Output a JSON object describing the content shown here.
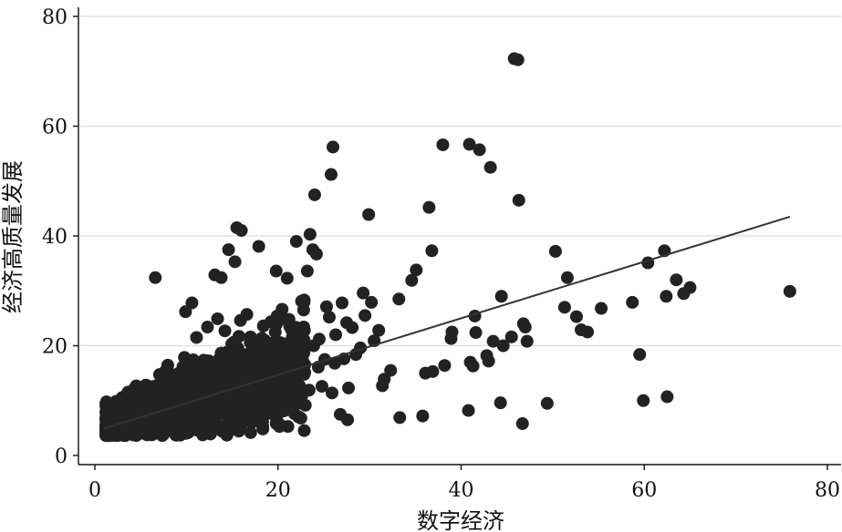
{
  "chart_data": {
    "type": "scatter",
    "title": "",
    "xlabel": "数字经济",
    "ylabel": "经济高质量发展",
    "xlim": [
      0,
      80
    ],
    "ylim": [
      0,
      80
    ],
    "x_ticks": [
      0,
      20,
      40,
      60,
      80
    ],
    "y_ticks": [
      0,
      20,
      40,
      60,
      80
    ],
    "x_tick_labels": [
      "0",
      "20",
      "40",
      "60",
      "80"
    ],
    "y_tick_labels": [
      "0",
      "20",
      "40",
      "60",
      "80"
    ],
    "grid": "horizontal",
    "legend": "none",
    "colors": {
      "points": "#222222",
      "fit_line": "#333333",
      "grid": "#dcdcdc"
    },
    "series": [
      {
        "points": [
          [
            45.8,
            72.3
          ],
          [
            46.2,
            72.1
          ],
          [
            26.0,
            56.2
          ],
          [
            38.0,
            56.6
          ],
          [
            40.9,
            56.7
          ],
          [
            42.0,
            55.7
          ],
          [
            25.8,
            51.2
          ],
          [
            43.2,
            52.5
          ],
          [
            24.0,
            47.5
          ],
          [
            46.3,
            46.5
          ],
          [
            36.5,
            45.2
          ],
          [
            29.9,
            43.9
          ],
          [
            15.5,
            41.5
          ],
          [
            16.0,
            41.0
          ],
          [
            22.0,
            39.0
          ],
          [
            23.5,
            40.3
          ],
          [
            17.9,
            38.1
          ],
          [
            14.6,
            37.5
          ],
          [
            36.8,
            37.3
          ],
          [
            23.8,
            37.5
          ],
          [
            24.2,
            36.7
          ],
          [
            50.3,
            37.2
          ],
          [
            62.2,
            37.3
          ],
          [
            60.4,
            35.1
          ],
          [
            15.3,
            35.3
          ],
          [
            19.8,
            33.6
          ],
          [
            23.2,
            33.6
          ],
          [
            21.0,
            32.3
          ],
          [
            13.1,
            32.9
          ],
          [
            13.8,
            32.4
          ],
          [
            6.6,
            32.4
          ],
          [
            51.6,
            32.4
          ],
          [
            63.5,
            32.0
          ],
          [
            35.1,
            33.8
          ],
          [
            34.6,
            31.9
          ],
          [
            65.0,
            30.6
          ],
          [
            64.3,
            29.5
          ],
          [
            75.9,
            29.9
          ],
          [
            62.4,
            29.0
          ],
          [
            44.4,
            29.0
          ],
          [
            33.2,
            28.5
          ],
          [
            29.3,
            29.6
          ],
          [
            58.7,
            27.9
          ],
          [
            51.3,
            27.0
          ],
          [
            55.3,
            26.8
          ],
          [
            52.6,
            25.3
          ],
          [
            41.5,
            25.4
          ],
          [
            10.6,
            27.8
          ],
          [
            9.9,
            26.2
          ],
          [
            53.1,
            22.9
          ],
          [
            53.8,
            22.5
          ],
          [
            46.8,
            24.0
          ],
          [
            47.0,
            23.4
          ],
          [
            39.0,
            22.5
          ],
          [
            41.6,
            22.4
          ],
          [
            47.2,
            20.8
          ],
          [
            38.9,
            21.3
          ],
          [
            45.5,
            21.6
          ],
          [
            44.6,
            20.0
          ],
          [
            43.5,
            20.8
          ],
          [
            59.5,
            18.4
          ],
          [
            42.8,
            18.2
          ],
          [
            41.0,
            17.0
          ],
          [
            43.0,
            17.2
          ],
          [
            38.2,
            16.4
          ],
          [
            41.3,
            16.3
          ],
          [
            36.9,
            15.3
          ],
          [
            36.1,
            15.0
          ],
          [
            32.3,
            15.5
          ],
          [
            31.6,
            13.9
          ],
          [
            31.4,
            12.7
          ],
          [
            44.3,
            9.6
          ],
          [
            49.4,
            9.5
          ],
          [
            62.5,
            10.7
          ],
          [
            59.9,
            10.0
          ],
          [
            40.8,
            8.2
          ],
          [
            33.3,
            6.9
          ],
          [
            35.8,
            7.2
          ],
          [
            46.7,
            5.8
          ],
          [
            27.6,
            6.5
          ],
          [
            26.8,
            7.5
          ],
          [
            30.2,
            27.9
          ],
          [
            31.0,
            22.8
          ],
          [
            30.5,
            20.9
          ],
          [
            29.0,
            19.6
          ],
          [
            28.5,
            18.4
          ],
          [
            27.2,
            17.6
          ],
          [
            26.2,
            16.8
          ],
          [
            25.1,
            17.5
          ],
          [
            24.4,
            16.1
          ],
          [
            27.7,
            12.3
          ],
          [
            25.9,
            11.4
          ],
          [
            24.8,
            12.6
          ],
          [
            23.4,
            11.9
          ],
          [
            22.6,
            10.9
          ],
          [
            21.4,
            10.2
          ],
          [
            20.9,
            9.1
          ],
          [
            21.8,
            7.6
          ],
          [
            22.5,
            6.8
          ],
          [
            20.3,
            8.4
          ],
          [
            19.7,
            22.5
          ],
          [
            21.2,
            24.8
          ],
          [
            22.8,
            26.5
          ],
          [
            18.4,
            23.6
          ],
          [
            19.9,
            25.4
          ],
          [
            17.0,
            21.6
          ],
          [
            15.9,
            24.6
          ],
          [
            14.2,
            22.7
          ],
          [
            12.3,
            23.4
          ],
          [
            11.1,
            21.5
          ],
          [
            13.4,
            24.9
          ],
          [
            16.6,
            25.7
          ],
          [
            18.6,
            20.4
          ],
          [
            25.6,
            25.2
          ],
          [
            27.5,
            24.2
          ],
          [
            28.1,
            23.3
          ],
          [
            24.5,
            21.2
          ],
          [
            26.3,
            22.0
          ],
          [
            29.5,
            25.5
          ],
          [
            22.3,
            21.0
          ],
          [
            27.0,
            27.8
          ],
          [
            25.3,
            27.1
          ],
          [
            23.9,
            20.0
          ]
        ]
      }
    ],
    "fit_line": {
      "x": [
        1.0,
        75.9
      ],
      "y": [
        4.9,
        43.5
      ]
    },
    "cloud": {
      "count": 1400,
      "x_range": [
        1.2,
        23.0
      ],
      "intercept": 4.6,
      "slope": 0.52,
      "spread_base": 2.4,
      "spread_slope": 0.2
    }
  }
}
